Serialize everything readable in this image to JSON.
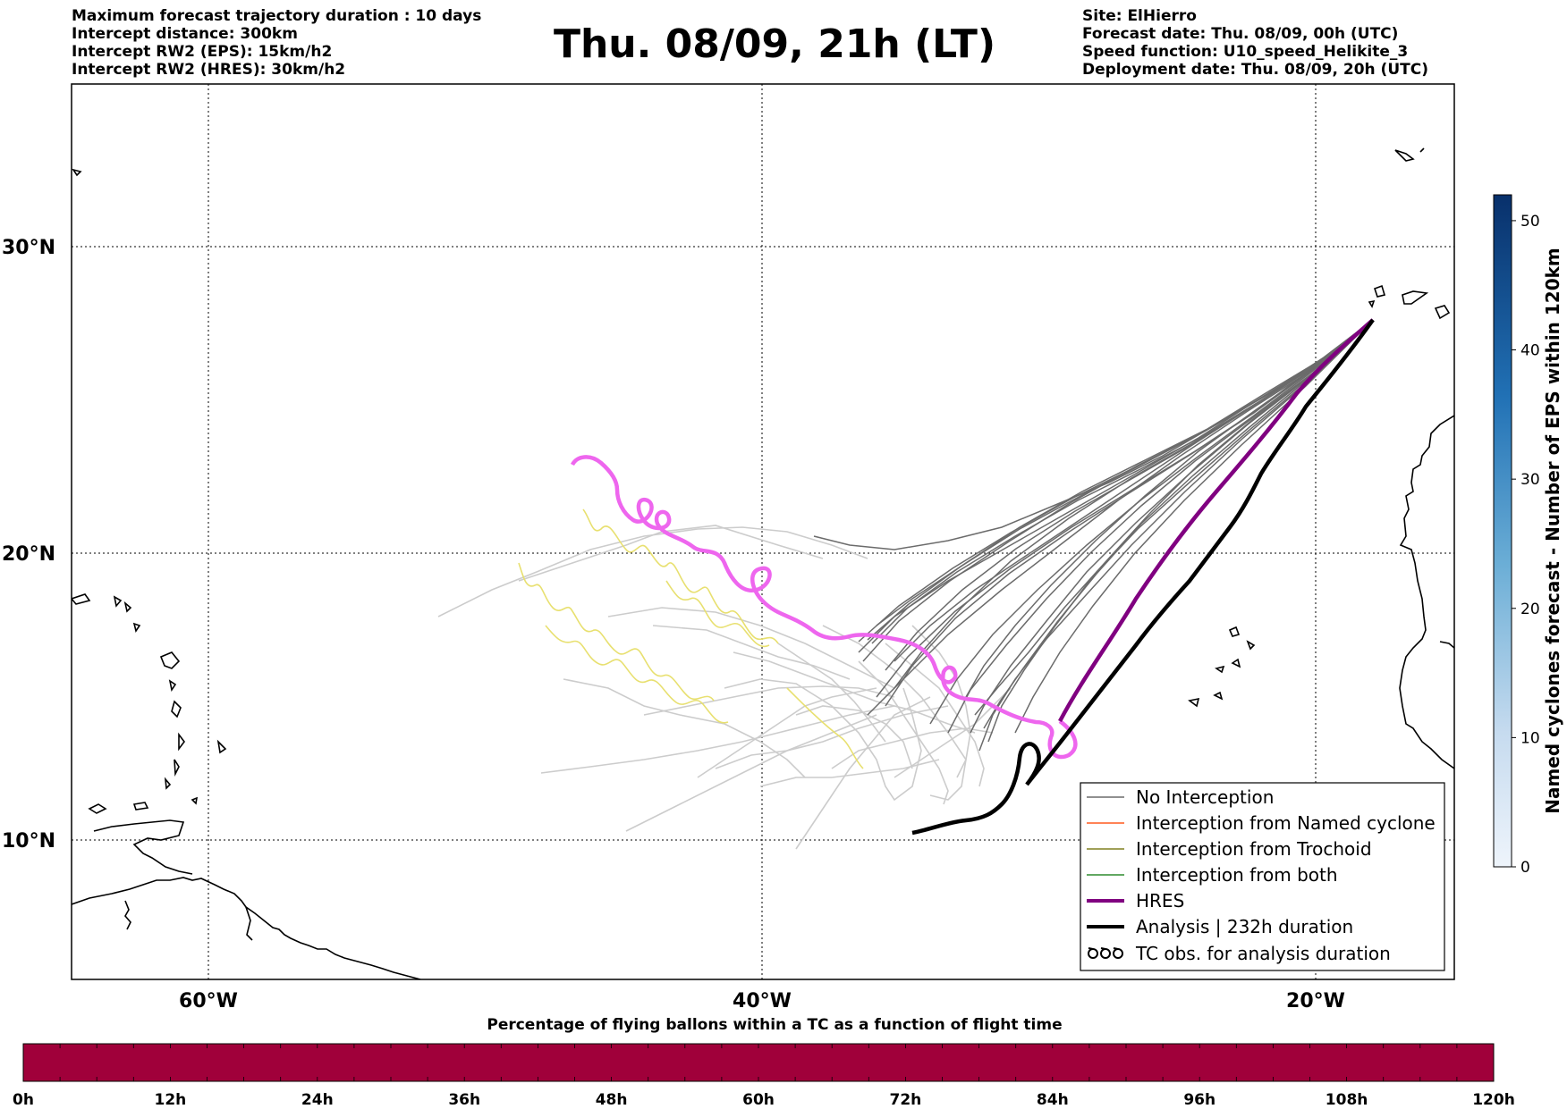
{
  "header_left": [
    "Maximum forecast trajectory duration : 10 days",
    "Intercept distance: 300km",
    "Intercept RW2 (EPS):  15km/h2",
    "Intercept RW2 (HRES): 30km/h2"
  ],
  "header_right": [
    "Site: ElHierro",
    "Forecast date: Thu. 08/09, 00h (UTC)",
    "Speed function: U10_speed_Helikite_3",
    "Deployment date: Thu. 08/09, 20h (UTC)"
  ],
  "title": "Thu. 08/09, 21h (LT)",
  "map": {
    "lat_labels": [
      "30°N",
      "20°N",
      "10°N"
    ],
    "lon_labels": [
      "60°W",
      "40°W",
      "20°W"
    ]
  },
  "legend": {
    "items": [
      {
        "label": "No Interception",
        "color": "#6b6b6b",
        "style": "thin"
      },
      {
        "label": "Interception from Named cyclone",
        "color": "#ff5a1e",
        "style": "thin"
      },
      {
        "label": "Interception from Trochoid",
        "color": "#808020",
        "style": "thin"
      },
      {
        "label": "Interception from both",
        "color": "#2e8b2e",
        "style": "thin"
      },
      {
        "label": "HRES",
        "color": "#800080",
        "style": "thick"
      },
      {
        "label": "Analysis | 232h duration",
        "color": "#000000",
        "style": "thick"
      },
      {
        "label": "TC obs. for analysis duration",
        "color": "#000000",
        "style": "symbol"
      }
    ]
  },
  "colorbar_vertical": {
    "title": "Named cyclones forecast - Number of EPS within 120km",
    "ticks": [
      "0",
      "10",
      "20",
      "30",
      "40",
      "50"
    ],
    "range": [
      0,
      52
    ]
  },
  "colorbar_horizontal": {
    "title": "Percentage of flying ballons within a TC as a function of flight time",
    "ticks": [
      "0h",
      "12h",
      "24h",
      "36h",
      "48h",
      "60h",
      "72h",
      "84h",
      "96h",
      "108h",
      "120h"
    ],
    "fill_color": "#a0003a"
  },
  "colors": {
    "no_interception": "#6b6b6b",
    "light_trajectory": "#cccccc",
    "trochoid_yellow": "#e8e070",
    "hres_magenta": "#ee66ee",
    "hres_purple": "#800080",
    "analysis": "#000000"
  }
}
